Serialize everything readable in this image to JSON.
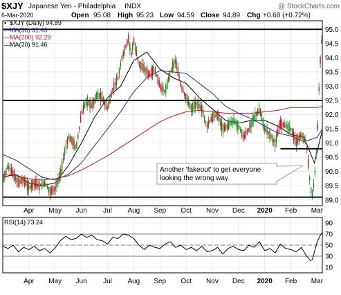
{
  "colors": {
    "up": "#1a8a1a",
    "down": "#c4161c",
    "ma50": "#1f2f9e",
    "ma200": "#c4161c",
    "ma20": "#000000",
    "rsi": "#000000",
    "grid": "#d9d9d9",
    "frame": "#000000"
  },
  "chart_data": [
    {
      "type": "candlestick",
      "symbol": "$XJY",
      "name": "Japanese Yen - Philadelphia",
      "exchange": "INDX",
      "date": "6-Mar-2020",
      "quote": {
        "open_label": "Open",
        "open": "95.08",
        "high_label": "High",
        "high": "95.23",
        "low_label": "Low",
        "low": "94.59",
        "close_label": "Close",
        "close": "94.89",
        "chg_label": "Chg",
        "chg": "+0.68 (+0.72%)"
      },
      "watermark": "@ StockCharts.com",
      "legend": [
        {
          "marker": "▪",
          "text": "$XJY (Daily) 94.89",
          "color": "#000000",
          "key": "price"
        },
        {
          "marker": "—",
          "text": "MA(50) 91.49",
          "color": "#1f2f9e",
          "key": "ma50"
        },
        {
          "marker": "—",
          "text": "MA(200) 92.29",
          "color": "#c4161c",
          "key": "ma200"
        },
        {
          "marker": "—",
          "text": "MA(20) 91.46",
          "color": "#000000",
          "key": "ma20"
        }
      ],
      "legend_position": "top-left",
      "ylim": [
        88.8,
        95.3
      ],
      "y_ticks": [
        89.0,
        89.5,
        90.0,
        90.5,
        91.0,
        91.5,
        92.0,
        92.5,
        93.0,
        93.5,
        94.0,
        94.5,
        95.0
      ],
      "y_tick_labels": [
        "89.0",
        "89.5",
        "90.0",
        "90.5",
        "91.0",
        "91.5",
        "92.0",
        "92.5",
        "93.0",
        "93.5",
        "94.0",
        "94.5",
        "95.0"
      ],
      "x_months": [
        {
          "label": "Apr",
          "month": 4,
          "bold": false
        },
        {
          "label": "May",
          "month": 5,
          "bold": false
        },
        {
          "label": "Jun",
          "month": 6,
          "bold": false
        },
        {
          "label": "Jul",
          "month": 7,
          "bold": false
        },
        {
          "label": "Aug",
          "month": 8,
          "bold": false
        },
        {
          "label": "Sep",
          "month": 9,
          "bold": false
        },
        {
          "label": "Oct",
          "month": 10,
          "bold": false
        },
        {
          "label": "Nov",
          "month": 11,
          "bold": false
        },
        {
          "label": "Dec",
          "month": 12,
          "bold": false
        },
        {
          "label": "2020",
          "month": 13,
          "bold": true
        },
        {
          "label": "Feb",
          "month": 14,
          "bold": false
        },
        {
          "label": "Mar",
          "month": 15,
          "bold": false
        }
      ],
      "x_range_months": [
        3.0,
        15.2
      ],
      "price_points": [
        [
          3.0,
          89.7
        ],
        [
          3.2,
          90.2
        ],
        [
          3.4,
          89.9
        ],
        [
          3.6,
          89.6
        ],
        [
          3.8,
          89.7
        ],
        [
          4.0,
          89.4
        ],
        [
          4.2,
          89.6
        ],
        [
          4.4,
          89.5
        ],
        [
          4.6,
          89.6
        ],
        [
          4.8,
          89.3
        ],
        [
          5.0,
          89.4
        ],
        [
          5.2,
          89.9
        ],
        [
          5.35,
          90.6
        ],
        [
          5.5,
          91.2
        ],
        [
          5.65,
          91.1
        ],
        [
          5.8,
          90.8
        ],
        [
          6.0,
          92.0
        ],
        [
          6.2,
          92.5
        ],
        [
          6.4,
          92.3
        ],
        [
          6.6,
          92.7
        ],
        [
          6.8,
          92.6
        ],
        [
          7.0,
          92.2
        ],
        [
          7.2,
          92.9
        ],
        [
          7.4,
          93.3
        ],
        [
          7.55,
          94.0
        ],
        [
          7.7,
          94.4
        ],
        [
          7.8,
          94.7
        ],
        [
          7.9,
          94.1
        ],
        [
          8.0,
          94.6
        ],
        [
          8.1,
          94.2
        ],
        [
          8.2,
          93.8
        ],
        [
          8.4,
          93.6
        ],
        [
          8.6,
          93.4
        ],
        [
          8.8,
          93.6
        ],
        [
          9.0,
          93.0
        ],
        [
          9.2,
          92.8
        ],
        [
          9.4,
          93.5
        ],
        [
          9.6,
          93.9
        ],
        [
          9.8,
          93.0
        ],
        [
          10.0,
          92.6
        ],
        [
          10.2,
          92.2
        ],
        [
          10.4,
          92.4
        ],
        [
          10.6,
          92.2
        ],
        [
          10.8,
          91.6
        ],
        [
          11.0,
          91.9
        ],
        [
          11.2,
          92.0
        ],
        [
          11.4,
          91.5
        ],
        [
          11.6,
          91.6
        ],
        [
          11.8,
          91.8
        ],
        [
          12.0,
          91.6
        ],
        [
          12.2,
          91.2
        ],
        [
          12.4,
          91.5
        ],
        [
          12.6,
          91.9
        ],
        [
          12.8,
          92.2
        ],
        [
          13.0,
          91.5
        ],
        [
          13.2,
          91.3
        ],
        [
          13.4,
          91.0
        ],
        [
          13.6,
          91.7
        ],
        [
          13.8,
          91.6
        ],
        [
          14.0,
          91.5
        ],
        [
          14.2,
          91.0
        ],
        [
          14.4,
          91.3
        ],
        [
          14.6,
          91.0
        ],
        [
          14.75,
          89.4
        ],
        [
          14.82,
          89.2
        ],
        [
          14.9,
          89.7
        ],
        [
          15.0,
          91.0
        ],
        [
          15.1,
          93.6
        ],
        [
          15.2,
          94.9
        ]
      ],
      "ma50_points": [
        [
          3.0,
          90.6
        ],
        [
          3.5,
          90.4
        ],
        [
          4.0,
          90.1
        ],
        [
          4.5,
          89.8
        ],
        [
          5.0,
          89.7
        ],
        [
          5.5,
          89.9
        ],
        [
          6.0,
          90.3
        ],
        [
          6.5,
          90.9
        ],
        [
          7.0,
          91.5
        ],
        [
          7.5,
          92.1
        ],
        [
          8.0,
          92.8
        ],
        [
          8.5,
          93.3
        ],
        [
          9.0,
          93.55
        ],
        [
          9.5,
          93.5
        ],
        [
          10.0,
          93.45
        ],
        [
          10.5,
          93.1
        ],
        [
          11.0,
          92.75
        ],
        [
          11.5,
          92.3
        ],
        [
          12.0,
          92.05
        ],
        [
          12.5,
          91.85
        ],
        [
          13.0,
          91.6
        ],
        [
          13.5,
          91.35
        ],
        [
          14.0,
          91.25
        ],
        [
          14.5,
          91.05
        ],
        [
          15.0,
          91.2
        ],
        [
          15.2,
          91.49
        ]
      ],
      "ma200_points": [
        [
          3.0,
          89.9
        ],
        [
          3.5,
          89.85
        ],
        [
          4.0,
          89.75
        ],
        [
          4.5,
          89.7
        ],
        [
          5.0,
          89.75
        ],
        [
          5.5,
          89.85
        ],
        [
          6.0,
          90.05
        ],
        [
          6.5,
          90.3
        ],
        [
          7.0,
          90.55
        ],
        [
          7.5,
          90.85
        ],
        [
          8.0,
          91.15
        ],
        [
          8.5,
          91.45
        ],
        [
          9.0,
          91.75
        ],
        [
          9.5,
          91.95
        ],
        [
          10.0,
          92.1
        ],
        [
          10.5,
          92.15
        ],
        [
          11.0,
          92.1
        ],
        [
          11.5,
          92.05
        ],
        [
          12.0,
          92.05
        ],
        [
          12.5,
          92.05
        ],
        [
          13.0,
          92.1
        ],
        [
          13.5,
          92.15
        ],
        [
          14.0,
          92.25
        ],
        [
          14.5,
          92.25
        ],
        [
          15.0,
          92.25
        ],
        [
          15.2,
          92.29
        ]
      ],
      "ma20_points": [
        [
          3.0,
          89.8
        ],
        [
          3.5,
          89.9
        ],
        [
          4.0,
          89.6
        ],
        [
          4.5,
          89.5
        ],
        [
          5.0,
          89.6
        ],
        [
          5.5,
          90.2
        ],
        [
          6.0,
          91.0
        ],
        [
          6.5,
          91.9
        ],
        [
          7.0,
          92.6
        ],
        [
          7.5,
          93.0
        ],
        [
          8.0,
          93.9
        ],
        [
          8.5,
          94.2
        ],
        [
          9.0,
          93.6
        ],
        [
          9.5,
          93.3
        ],
        [
          10.0,
          93.1
        ],
        [
          10.5,
          92.6
        ],
        [
          11.0,
          92.2
        ],
        [
          11.5,
          91.8
        ],
        [
          12.0,
          91.7
        ],
        [
          12.5,
          91.8
        ],
        [
          13.0,
          91.8
        ],
        [
          13.5,
          91.6
        ],
        [
          14.0,
          91.3
        ],
        [
          14.5,
          91.2
        ],
        [
          14.9,
          90.3
        ],
        [
          15.2,
          91.46
        ]
      ],
      "hlines": [
        95.0,
        92.5,
        90.8,
        89.1
      ],
      "annotation": {
        "lines": [
          "Another 'fakeout' to get everyone",
          "looking the wrong way"
        ],
        "arrow_to_month": 14.6,
        "arrow_to_value": 90.2
      }
    },
    {
      "type": "line",
      "name": "RSI(14) 73.24",
      "legend_position": "top-left",
      "ylim": [
        0,
        100
      ],
      "y_ticks": [
        10,
        30,
        50,
        70,
        90
      ],
      "y_tick_labels": [
        "10",
        "30",
        "50",
        "70",
        "90"
      ],
      "ref_lines": [
        70,
        50,
        30
      ],
      "x_range_months": [
        3.0,
        15.2
      ],
      "points": [
        [
          3.0,
          48
        ],
        [
          3.2,
          44
        ],
        [
          3.4,
          50
        ],
        [
          3.6,
          38
        ],
        [
          3.8,
          46
        ],
        [
          4.0,
          42
        ],
        [
          4.2,
          48
        ],
        [
          4.4,
          40
        ],
        [
          4.6,
          44
        ],
        [
          4.8,
          36
        ],
        [
          5.0,
          45
        ],
        [
          5.2,
          58
        ],
        [
          5.4,
          66
        ],
        [
          5.6,
          60
        ],
        [
          5.8,
          62
        ],
        [
          6.0,
          70
        ],
        [
          6.2,
          64
        ],
        [
          6.4,
          68
        ],
        [
          6.6,
          60
        ],
        [
          6.8,
          58
        ],
        [
          7.0,
          52
        ],
        [
          7.2,
          64
        ],
        [
          7.4,
          62
        ],
        [
          7.6,
          70
        ],
        [
          7.8,
          68
        ],
        [
          8.0,
          62
        ],
        [
          8.2,
          50
        ],
        [
          8.4,
          42
        ],
        [
          8.6,
          50
        ],
        [
          8.8,
          46
        ],
        [
          9.0,
          44
        ],
        [
          9.2,
          52
        ],
        [
          9.4,
          56
        ],
        [
          9.6,
          46
        ],
        [
          9.8,
          50
        ],
        [
          10.0,
          42
        ],
        [
          10.2,
          46
        ],
        [
          10.4,
          40
        ],
        [
          10.6,
          48
        ],
        [
          10.8,
          38
        ],
        [
          11.0,
          40
        ],
        [
          11.2,
          46
        ],
        [
          11.4,
          34
        ],
        [
          11.6,
          44
        ],
        [
          11.8,
          48
        ],
        [
          12.0,
          42
        ],
        [
          12.2,
          40
        ],
        [
          12.4,
          50
        ],
        [
          12.6,
          46
        ],
        [
          12.8,
          56
        ],
        [
          13.0,
          40
        ],
        [
          13.2,
          44
        ],
        [
          13.4,
          36
        ],
        [
          13.6,
          52
        ],
        [
          13.8,
          44
        ],
        [
          14.0,
          42
        ],
        [
          14.2,
          38
        ],
        [
          14.4,
          46
        ],
        [
          14.6,
          30
        ],
        [
          14.75,
          22
        ],
        [
          14.82,
          24
        ],
        [
          14.9,
          38
        ],
        [
          15.0,
          55
        ],
        [
          15.1,
          66
        ],
        [
          15.2,
          73
        ]
      ]
    }
  ],
  "x_axis_labels": [
    {
      "label": "Apr",
      "month": 4,
      "bold": false
    },
    {
      "label": "May",
      "month": 5,
      "bold": false
    },
    {
      "label": "Jun",
      "month": 6,
      "bold": false
    },
    {
      "label": "Jul",
      "month": 7,
      "bold": false
    },
    {
      "label": "Aug",
      "month": 8,
      "bold": false
    },
    {
      "label": "Sep",
      "month": 9,
      "bold": false
    },
    {
      "label": "Oct",
      "month": 10,
      "bold": false
    },
    {
      "label": "Nov",
      "month": 11,
      "bold": false
    },
    {
      "label": "Dec",
      "month": 12,
      "bold": false
    },
    {
      "label": "2020",
      "month": 13,
      "bold": true
    },
    {
      "label": "Feb",
      "month": 14,
      "bold": false
    },
    {
      "label": "Mar",
      "month": 15,
      "bold": false
    }
  ]
}
